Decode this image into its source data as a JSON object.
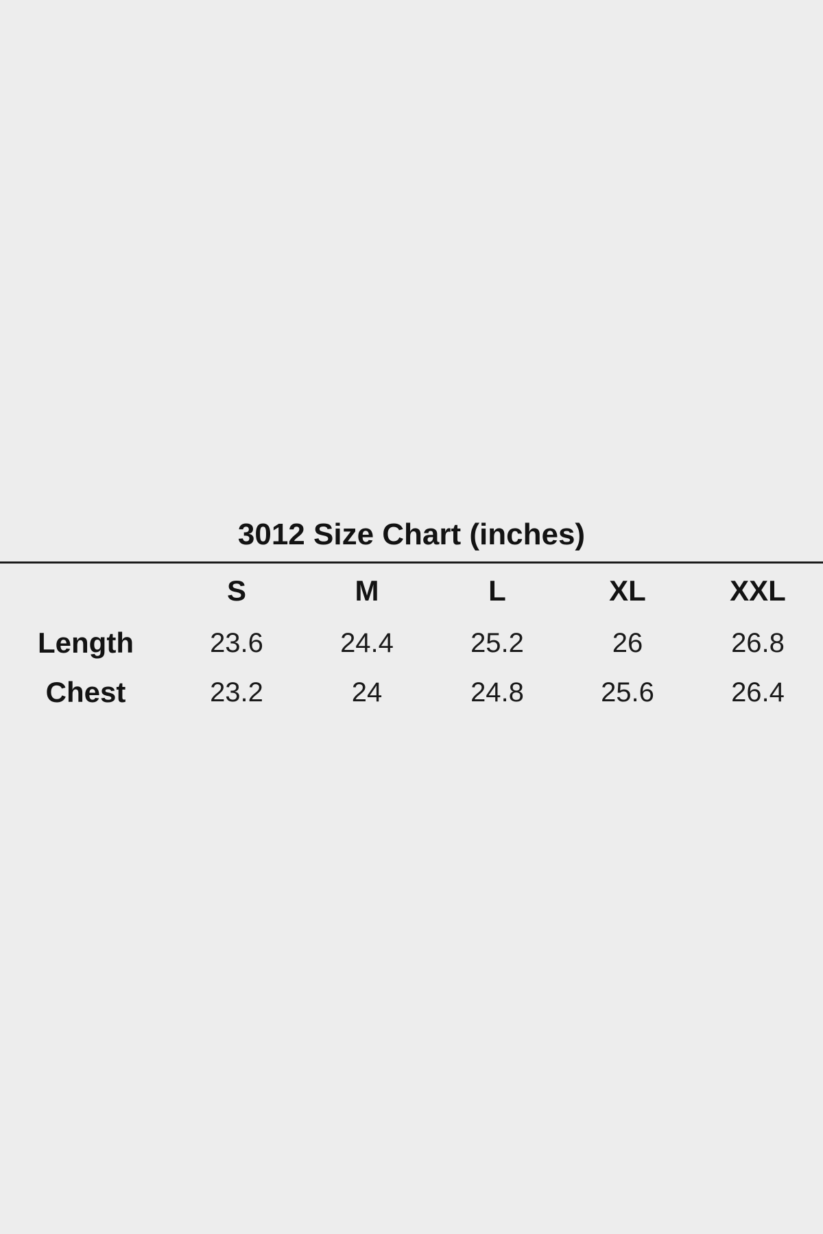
{
  "page": {
    "background_color": "#ededed",
    "text_color": "#131313",
    "rule_color": "#1b1b1b"
  },
  "size_chart": {
    "title": "3012 Size Chart (inches)",
    "corner_label": "",
    "columns": [
      "S",
      "M",
      "L",
      "XL",
      "XXL"
    ],
    "rows": [
      {
        "label": "Length",
        "values": [
          "23.6",
          "24.4",
          "25.2",
          "26",
          "26.8"
        ]
      },
      {
        "label": "Chest",
        "values": [
          "23.2",
          "24",
          "24.8",
          "25.6",
          "26.4"
        ]
      }
    ]
  },
  "chart_data": {
    "type": "table",
    "title": "3012 Size Chart (inches)",
    "units": "inches",
    "columns": [
      "S",
      "M",
      "L",
      "XL",
      "XXL"
    ],
    "rows": [
      {
        "label": "Length",
        "values": [
          23.6,
          24.4,
          25.2,
          26,
          26.8
        ]
      },
      {
        "label": "Chest",
        "values": [
          23.2,
          24,
          24.8,
          25.6,
          26.4
        ]
      }
    ]
  }
}
